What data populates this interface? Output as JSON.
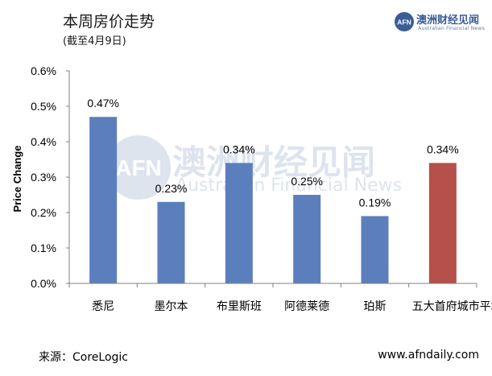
{
  "header": {
    "title": "本周房价走势",
    "subtitle": "(截至4月9日)"
  },
  "logo": {
    "mark": "AFN",
    "name": "澳洲财经见闻",
    "tagline": "Australian Financial News"
  },
  "watermark": {
    "mark": "AFN",
    "name": "澳洲财经见闻",
    "tagline": "Australian Financial News"
  },
  "footer": {
    "source": "来源：CoreLogic",
    "website": "www.afndaily.com"
  },
  "colors": {
    "bar": "#5b7fbd",
    "highlight_bar": "#b5504b"
  },
  "chart_data": {
    "type": "bar",
    "ylabel": "Price Change",
    "categories": [
      "悉尼",
      "墨尔本",
      "布里斯班",
      "阿德莱德",
      "珀斯",
      "五大首府城市平均"
    ],
    "values": [
      0.47,
      0.23,
      0.34,
      0.25,
      0.19,
      0.34
    ],
    "data_labels": [
      "0.47%",
      "0.23%",
      "0.34%",
      "0.25%",
      "0.19%",
      "0.34%"
    ],
    "yticks": [
      "0.0%",
      "0.1%",
      "0.2%",
      "0.3%",
      "0.4%",
      "0.5%",
      "0.6%"
    ],
    "ylim": [
      0,
      0.6
    ],
    "grid": false,
    "highlight_index": 5
  }
}
